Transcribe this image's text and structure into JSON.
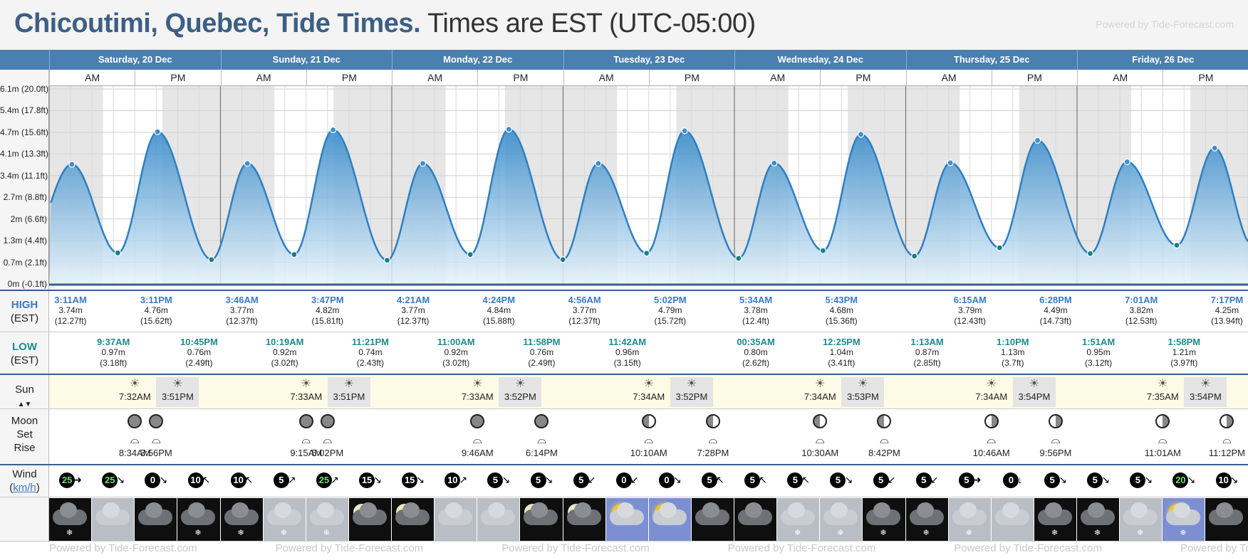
{
  "header": {
    "title": "Chicoutimi, Quebec, Tide Times.",
    "timezone": "Times are EST (UTC-05:00)",
    "powered_by": "Powered by Tide-Forecast.com"
  },
  "footer": {
    "powered_by": "Powered by Tide-Forecast.com"
  },
  "days": [
    {
      "name": "Saturday, 20 Dec"
    },
    {
      "name": "Sunday, 21 Dec"
    },
    {
      "name": "Monday, 22 Dec"
    },
    {
      "name": "Tuesday, 23 Dec"
    },
    {
      "name": "Wednesday, 24 Dec"
    },
    {
      "name": "Thursday, 25 Dec"
    },
    {
      "name": "Friday, 26 Dec"
    }
  ],
  "am_label": "AM",
  "pm_label": "PM",
  "row_labels": {
    "high": "HIGH",
    "high_tz": "(EST)",
    "low": "LOW",
    "low_tz": "(EST)",
    "sun": "Sun",
    "moon": "Moon",
    "set": "Set",
    "rise": "Rise",
    "wind": "Wind",
    "wind_unit": "km/h"
  },
  "chart_data": {
    "type": "area",
    "y_ticks": [
      "0m (-0.1ft)",
      "0.7m (2.1ft)",
      "1.3m (4.4ft)",
      "2m (6.6ft)",
      "2.7m (8.8ft)",
      "3.4m (11.1ft)",
      "4.1m (13.3ft)",
      "4.7m (15.6ft)",
      "5.4m (17.8ft)",
      "6.1m (20.0ft)"
    ],
    "ylim": [
      0,
      6.1
    ],
    "x": [
      "20 Dec 03:11",
      "20 Dec 09:37",
      "20 Dec 15:11",
      "20 Dec 22:45",
      "21 Dec 03:46",
      "21 Dec 10:19",
      "21 Dec 15:47",
      "21 Dec 23:21",
      "22 Dec 04:21",
      "22 Dec 11:00",
      "22 Dec 16:24",
      "22 Dec 23:58",
      "23 Dec 04:56",
      "23 Dec 11:42",
      "23 Dec 17:02",
      "24 Dec 00:35",
      "24 Dec 05:34",
      "24 Dec 12:25",
      "24 Dec 17:43",
      "25 Dec 01:13",
      "25 Dec 06:15",
      "25 Dec 13:10",
      "25 Dec 18:28",
      "26 Dec 01:51",
      "26 Dec 07:01",
      "26 Dec 13:58",
      "26 Dec 19:17"
    ],
    "heights": [
      3.74,
      0.97,
      4.76,
      0.76,
      3.77,
      0.92,
      4.82,
      0.74,
      3.77,
      0.92,
      4.84,
      0.76,
      3.77,
      0.96,
      4.79,
      0.8,
      3.78,
      1.04,
      4.68,
      0.87,
      3.79,
      1.13,
      4.49,
      0.95,
      3.82,
      1.21,
      4.25
    ]
  },
  "high_tides": [
    {
      "time": "3:11AM",
      "m": "3.74m",
      "ft": "(12.27ft)"
    },
    {
      "time": "3:11PM",
      "m": "4.76m",
      "ft": "(15.62ft)"
    },
    {
      "time": "3:46AM",
      "m": "3.77m",
      "ft": "(12.37ft)"
    },
    {
      "time": "3:47PM",
      "m": "4.82m",
      "ft": "(15.81ft)"
    },
    {
      "time": "4:21AM",
      "m": "3.77m",
      "ft": "(12.37ft)"
    },
    {
      "time": "4:24PM",
      "m": "4.84m",
      "ft": "(15.88ft)"
    },
    {
      "time": "4:56AM",
      "m": "3.77m",
      "ft": "(12.37ft)"
    },
    {
      "time": "5:02PM",
      "m": "4.79m",
      "ft": "(15.72ft)"
    },
    {
      "time": "5:34AM",
      "m": "3.78m",
      "ft": "(12.4ft)"
    },
    {
      "time": "5:43PM",
      "m": "4.68m",
      "ft": "(15.36ft)"
    },
    {
      "time": "6:15AM",
      "m": "3.79m",
      "ft": "(12.43ft)"
    },
    {
      "time": "6:28PM",
      "m": "4.49m",
      "ft": "(14.73ft)"
    },
    {
      "time": "7:01AM",
      "m": "3.82m",
      "ft": "(12.53ft)"
    },
    {
      "time": "7:17PM",
      "m": "4.25m",
      "ft": "(13.94ft)"
    }
  ],
  "low_tides": [
    {
      "time": "9:37AM",
      "m": "0.97m",
      "ft": "(3.18ft)"
    },
    {
      "time": "10:45PM",
      "m": "0.76m",
      "ft": "(2.49ft)"
    },
    {
      "time": "10:19AM",
      "m": "0.92m",
      "ft": "(3.02ft)"
    },
    {
      "time": "11:21PM",
      "m": "0.74m",
      "ft": "(2.43ft)"
    },
    {
      "time": "11:00AM",
      "m": "0.92m",
      "ft": "(3.02ft)"
    },
    {
      "time": "11:58PM",
      "m": "0.76m",
      "ft": "(2.49ft)"
    },
    {
      "time": "11:42AM",
      "m": "0.96m",
      "ft": "(3.15ft)"
    },
    {
      "time": "00:35AM",
      "m": "0.80m",
      "ft": "(2.62ft)"
    },
    {
      "time": "12:25PM",
      "m": "1.04m",
      "ft": "(3.41ft)"
    },
    {
      "time": "1:13AM",
      "m": "0.87m",
      "ft": "(2.85ft)"
    },
    {
      "time": "1:10PM",
      "m": "1.13m",
      "ft": "(3.7ft)"
    },
    {
      "time": "1:51AM",
      "m": "0.95m",
      "ft": "(3.12ft)"
    },
    {
      "time": "1:58PM",
      "m": "1.21m",
      "ft": "(3.97ft)"
    }
  ],
  "sun": [
    {
      "rise": "7:32AM",
      "set": "3:51PM"
    },
    {
      "rise": "7:33AM",
      "set": "3:51PM"
    },
    {
      "rise": "7:33AM",
      "set": "3:52PM"
    },
    {
      "rise": "7:34AM",
      "set": "3:52PM"
    },
    {
      "rise": "7:34AM",
      "set": "3:53PM"
    },
    {
      "rise": "7:34AM",
      "set": "3:54PM"
    },
    {
      "rise": "7:35AM",
      "set": "3:54PM"
    }
  ],
  "moon": [
    {
      "time": "8:34AM"
    },
    {
      "time": "3:56PM"
    },
    {
      "time": "9:15AM"
    },
    {
      "time": "5:02PM"
    },
    {
      "time": "9:46AM"
    },
    {
      "time": "6:14PM"
    },
    {
      "time": "10:10AM"
    },
    {
      "time": "7:28PM"
    },
    {
      "time": "10:30AM"
    },
    {
      "time": "8:42PM"
    },
    {
      "time": "10:46AM"
    },
    {
      "time": "9:56PM"
    },
    {
      "time": "11:01AM"
    },
    {
      "time": "11:12PM"
    }
  ],
  "wind": [
    "25",
    "25",
    "0",
    "10",
    "10",
    "5",
    "25",
    "15",
    "15",
    "10",
    "5",
    "5",
    "5",
    "0",
    "0",
    "5",
    "5",
    "5",
    "5",
    "5",
    "5",
    "5",
    "0",
    "5",
    "5",
    "5",
    "20",
    "10"
  ],
  "wind_arrows": [
    "➜",
    "↘",
    "↘",
    "↖",
    "↖",
    "↗",
    "↗",
    "↘",
    "↘",
    "↗",
    "↘",
    "↘",
    "↙",
    "↙",
    "↘",
    "↖",
    "↖",
    "↖",
    "↘",
    "↙",
    "↙",
    "➜",
    "↓",
    "↘",
    "↘",
    "↘",
    "↘",
    "↘"
  ],
  "weather_icons": [
    "cloud-snow-night",
    "cloud-day",
    "cloud-night",
    "cloud-snow-night",
    "cloud-snow-night",
    "cloud-snow-day",
    "cloud-snow-day",
    "moon-cloud-night",
    "moon-cloud-night",
    "cloud-day",
    "cloud-day",
    "moon-cloud-night",
    "moon-cloud-night",
    "sun-cloud-day",
    "sun-cloud-day",
    "cloud-night",
    "cloud-night",
    "cloud-snow-day",
    "cloud-snow-day",
    "cloud-snow-night",
    "cloud-snow-night",
    "cloud-snow-day",
    "cloud-day",
    "cloud-snow-night",
    "cloud-snow-night",
    "cloud-snow-day",
    "sun-cloud-snow-day",
    "cloud-night"
  ],
  "colors": {
    "title": "#3d5f84",
    "day_header": "#4a7fb1",
    "tide_fill_top": "#2f86c8",
    "high_time": "#3b7ac4",
    "low_time": "#1d8a8f"
  }
}
